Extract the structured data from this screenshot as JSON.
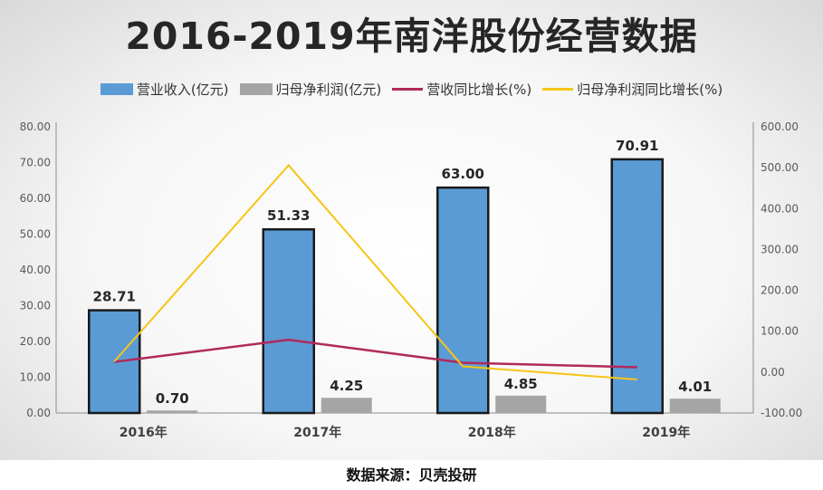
{
  "chart_data": {
    "type": "bar",
    "title": "2016-2019年南洋股份经营数据",
    "categories": [
      "2016年",
      "2017年",
      "2018年",
      "2019年"
    ],
    "series": [
      {
        "name": "营业收入(亿元)",
        "kind": "bar",
        "axis": "left",
        "color": "#5b9bd5",
        "values": [
          28.71,
          51.33,
          63.0,
          70.91
        ]
      },
      {
        "name": "归母净利润(亿元)",
        "kind": "bar",
        "axis": "left",
        "color": "#a5a5a5",
        "values": [
          0.7,
          4.25,
          4.85,
          4.01
        ]
      },
      {
        "name": "营收同比增长(%)",
        "kind": "line",
        "axis": "right",
        "color": "#b02a5b",
        "values": [
          25,
          79,
          23,
          12
        ]
      },
      {
        "name": "归母净利润同比增长(%)",
        "kind": "line",
        "axis": "right",
        "color": "#f5c518",
        "values": [
          26,
          506,
          14,
          -18
        ]
      }
    ],
    "data_labels": {
      "revenue": [
        "28.71",
        "51.33",
        "63.00",
        "70.91"
      ],
      "profit": [
        "0.70",
        "4.25",
        "4.85",
        "4.01"
      ]
    },
    "y_left": {
      "min": 0,
      "max": 80,
      "ticks": [
        "0.00",
        "10.00",
        "20.00",
        "30.00",
        "40.00",
        "50.00",
        "60.00",
        "70.00",
        "80.00"
      ]
    },
    "y_right": {
      "min": -100,
      "max": 600,
      "ticks": [
        "-100.00",
        "0.00",
        "100.00",
        "200.00",
        "300.00",
        "400.00",
        "500.00",
        "600.00"
      ]
    },
    "grid": false,
    "legend_position": "top"
  },
  "footer": {
    "source": "数据来源：贝壳投研"
  }
}
